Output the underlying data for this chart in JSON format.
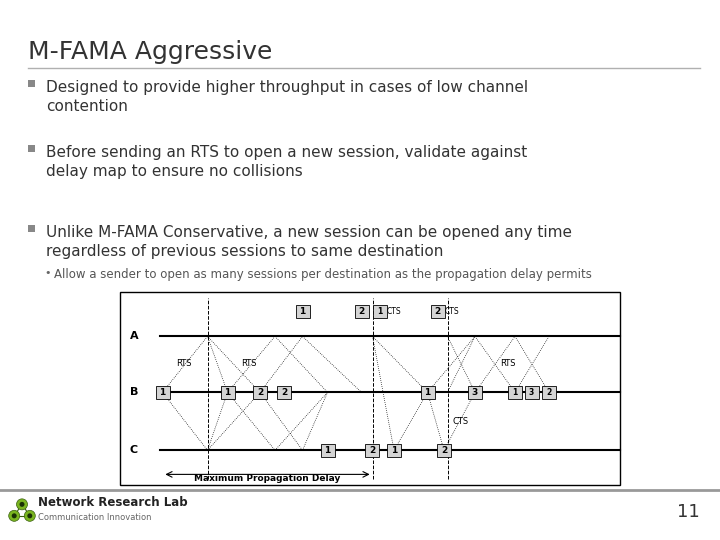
{
  "title": "M-FAMA Aggressive",
  "bullets": [
    "Designed to provide higher throughput in cases of low channel\ncontention",
    "Before sending an RTS to open a new session, validate against\ndelay map to ensure no collisions",
    "Unlike M-FAMA Conservative, a new session can be opened any time\nregardless of previous sessions to same destination"
  ],
  "sub_bullet": "Allow a sender to open as many sessions per destination as the propagation delay permits",
  "footer_lab": "Network Research Lab",
  "footer_sub": "Communication Innovation",
  "footer_num": "11",
  "bg_color": "#ffffff",
  "title_color": "#333333",
  "bullet_color": "#333333",
  "sub_bullet_color": "#555555",
  "bullet_sq_color": "#888888",
  "footer_line_color": "#999999",
  "diagram_border_color": "#000000",
  "title_fontsize": 18,
  "bullet_fontsize": 11,
  "sub_fontsize": 8.5
}
